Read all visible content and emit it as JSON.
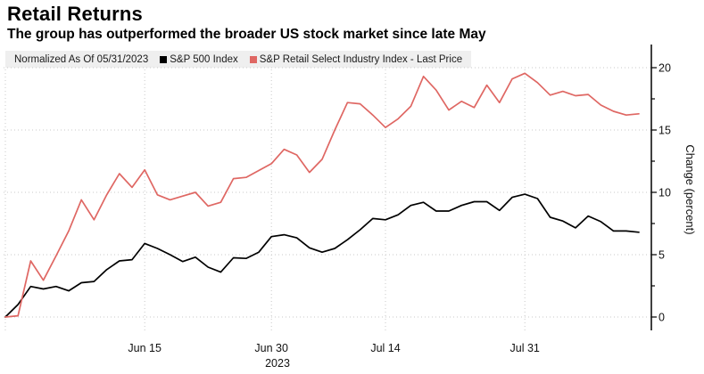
{
  "header": {
    "title": "Retail Returns",
    "subtitle": "The group has outperformed the broader US stock market since late May"
  },
  "legend": {
    "note": "Normalized As Of 05/31/2023",
    "items": [
      {
        "label": "S&P 500 Index",
        "color": "#000000"
      },
      {
        "label": "S&P Retail Select Industry Index - Last Price",
        "color": "#df6763"
      }
    ]
  },
  "chart_data": {
    "type": "line",
    "title": "Retail Returns",
    "subtitle": "The group has outperformed the broader US stock market since late May",
    "ylabel": "Change (percent)",
    "year_label": "2023",
    "ylim": [
      0,
      20
    ],
    "grid": true,
    "legend_position": "top",
    "legend_note": "Normalized As Of 05/31/2023",
    "y_major_ticks": [
      0,
      5,
      10,
      15,
      20
    ],
    "y_minor_ticks": [
      2.5,
      7.5,
      12.5,
      17.5
    ],
    "x_gridline_days": [
      0,
      11,
      21,
      30,
      41
    ],
    "x_ticks": [
      {
        "label": "Jun 15",
        "day": 11
      },
      {
        "label": "Jun 30",
        "day": 21
      },
      {
        "label": "Jul 14",
        "day": 30
      },
      {
        "label": "Jul 31",
        "day": 41
      }
    ],
    "dates": [
      "05/31",
      "06/01",
      "06/02",
      "06/05",
      "06/06",
      "06/07",
      "06/08",
      "06/09",
      "06/12",
      "06/13",
      "06/14",
      "06/15",
      "06/16",
      "06/20",
      "06/21",
      "06/22",
      "06/23",
      "06/26",
      "06/27",
      "06/28",
      "06/29",
      "06/30",
      "07/03",
      "07/05",
      "07/06",
      "07/07",
      "07/10",
      "07/11",
      "07/12",
      "07/13",
      "07/14",
      "07/17",
      "07/18",
      "07/19",
      "07/20",
      "07/21",
      "07/24",
      "07/25",
      "07/26",
      "07/27",
      "07/28",
      "07/31",
      "08/01",
      "08/02",
      "08/03",
      "08/04",
      "08/07",
      "08/08",
      "08/09",
      "08/10",
      "08/11"
    ],
    "series": [
      {
        "name": "S&P 500 Index",
        "color": "#000000",
        "values": [
          0.0,
          1.0,
          2.45,
          2.25,
          2.45,
          2.1,
          2.75,
          2.85,
          3.8,
          4.5,
          4.6,
          5.9,
          5.5,
          5.0,
          4.45,
          4.8,
          4.0,
          3.6,
          4.75,
          4.7,
          5.2,
          6.45,
          6.6,
          6.35,
          5.55,
          5.2,
          5.5,
          6.2,
          7.0,
          7.9,
          7.8,
          8.2,
          8.95,
          9.2,
          8.5,
          8.5,
          8.95,
          9.25,
          9.25,
          8.55,
          9.6,
          9.85,
          9.5,
          8.0,
          7.7,
          7.15,
          8.1,
          7.65,
          6.9,
          6.9,
          6.8
        ]
      },
      {
        "name": "S&P Retail Select Industry Index - Last Price",
        "color": "#df6763",
        "values": [
          0.0,
          0.1,
          4.5,
          2.95,
          4.9,
          6.9,
          9.4,
          7.8,
          9.8,
          11.5,
          10.4,
          11.8,
          9.8,
          9.4,
          9.7,
          10.0,
          8.9,
          9.2,
          11.1,
          11.2,
          11.75,
          12.3,
          13.45,
          13.0,
          11.6,
          12.65,
          15.0,
          17.2,
          17.1,
          16.2,
          15.2,
          15.9,
          16.9,
          19.3,
          18.2,
          16.6,
          17.3,
          16.8,
          18.6,
          17.2,
          19.1,
          19.55,
          18.8,
          17.8,
          18.1,
          17.75,
          17.85,
          17.0,
          16.5,
          16.2,
          16.3
        ]
      }
    ]
  }
}
